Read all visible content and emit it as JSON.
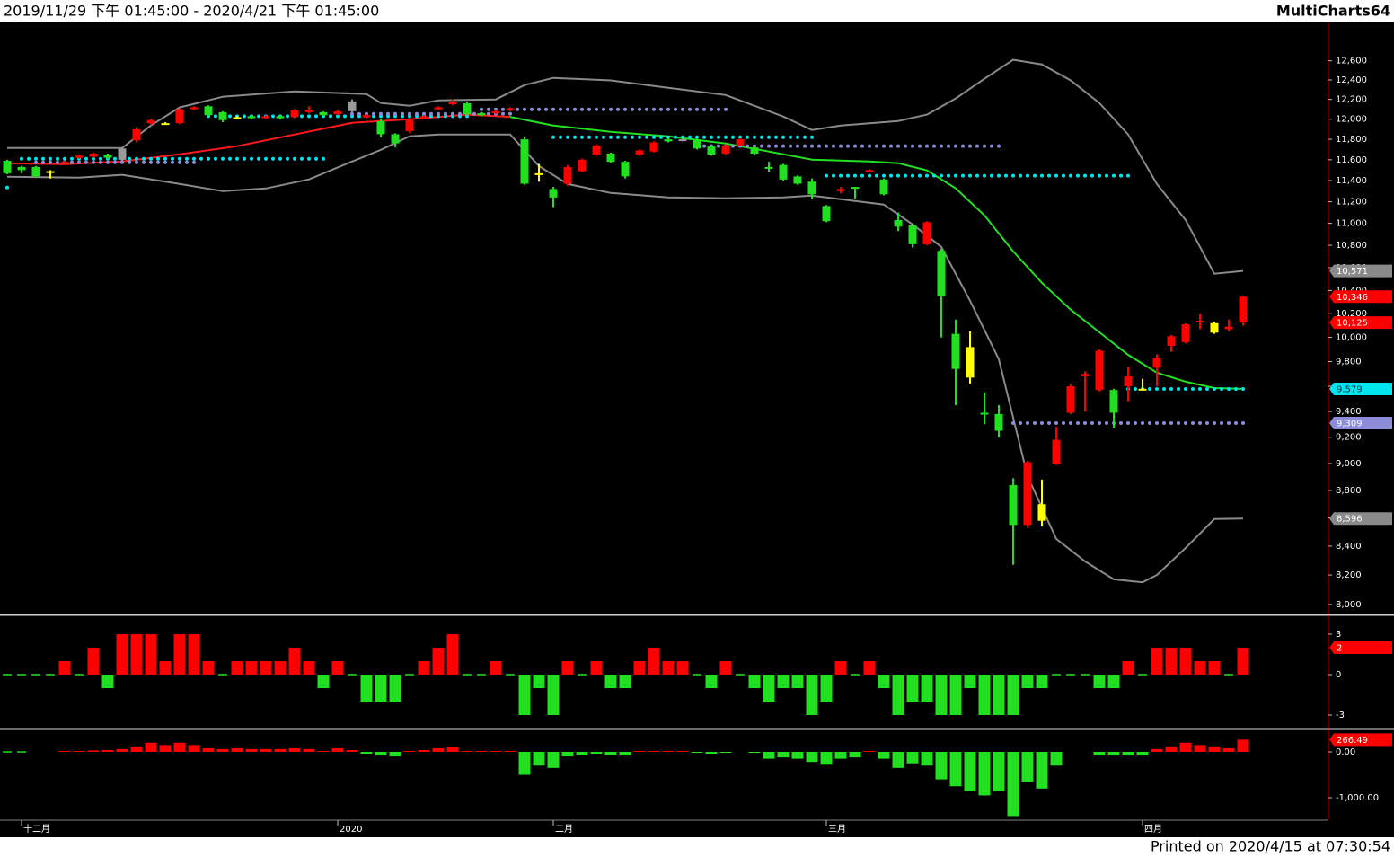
{
  "header": {
    "range": "2019/11/29 下午 01:45:00 - 2020/4/21 下午 01:45:00",
    "brand": "MultiCharts64"
  },
  "footer": {
    "printed": "Printed on 2020/4/15 at 07:30:54"
  },
  "chart_data": [
    {
      "type": "candlestick",
      "log_scale": true,
      "ylim": [
        7940,
        13010
      ],
      "yticks": [
        {
          "value": 8000,
          "label": "8,000"
        },
        {
          "value": 8200,
          "label": "8,200"
        },
        {
          "value": 8400,
          "label": "8,400"
        },
        {
          "value": 8600,
          "label": "8,600"
        },
        {
          "value": 8800,
          "label": "8,800"
        },
        {
          "value": 9000,
          "label": "9,000"
        },
        {
          "value": 9200,
          "label": "9,200"
        },
        {
          "value": 9400,
          "label": "9,400"
        },
        {
          "value": 9600,
          "label": "9,600"
        },
        {
          "value": 9800,
          "label": "9,800"
        },
        {
          "value": 10000,
          "label": "10,000"
        },
        {
          "value": 10200,
          "label": "10,200"
        },
        {
          "value": 10400,
          "label": "10,400"
        },
        {
          "value": 10600,
          "label": "10,600"
        },
        {
          "value": 10800,
          "label": "10,800"
        },
        {
          "value": 11000,
          "label": "11,000"
        },
        {
          "value": 11200,
          "label": "11,200"
        },
        {
          "value": 11400,
          "label": "11,400"
        },
        {
          "value": 11600,
          "label": "11,600"
        },
        {
          "value": 11800,
          "label": "11,800"
        },
        {
          "value": 12000,
          "label": "12,000"
        },
        {
          "value": 12200,
          "label": "12,200"
        },
        {
          "value": 12400,
          "label": "12,400"
        },
        {
          "value": 12600,
          "label": "12,600"
        }
      ],
      "categories": [
        null,
        "十二月",
        null,
        null,
        null,
        null,
        null,
        null,
        null,
        null,
        null,
        null,
        null,
        null,
        null,
        null,
        null,
        null,
        null,
        null,
        null,
        null,
        null,
        "2020",
        null,
        null,
        null,
        null,
        null,
        null,
        null,
        null,
        null,
        null,
        null,
        null,
        null,
        null,
        "二月",
        null,
        null,
        null,
        null,
        null,
        null,
        null,
        null,
        null,
        null,
        null,
        null,
        null,
        null,
        null,
        null,
        null,
        null,
        "三月",
        null,
        null,
        null,
        null,
        null,
        null,
        null,
        null,
        null,
        null,
        null,
        null,
        null,
        null,
        null,
        null,
        null,
        null,
        null,
        null,
        null,
        "四月",
        null,
        null,
        null,
        null,
        null,
        null,
        null
      ],
      "open": [
        11590,
        11530,
        11530,
        11490,
        11570,
        11620,
        11630,
        11650,
        11600,
        11790,
        11960,
        11960,
        11960,
        12100,
        12130,
        12070,
        12020,
        12030,
        12010,
        12030,
        12020,
        12090,
        12070,
        12050,
        12080,
        12020,
        11980,
        11850,
        11880,
        12010,
        12100,
        12150,
        12160,
        12060,
        12060,
        12090,
        11800,
        11470,
        11320,
        11370,
        11490,
        11650,
        11660,
        11580,
        11650,
        11680,
        11800,
        11800,
        11800,
        11730,
        11660,
        11740,
        11720,
        11530,
        11550,
        11440,
        11390,
        11160,
        11300,
        11340,
        11490,
        11410,
        11030,
        10980,
        10810,
        10750,
        10030,
        9920,
        9390,
        9380,
        8840,
        8550,
        8700,
        9000,
        9390,
        9680,
        9570,
        9570,
        9600,
        9580,
        9750,
        9930,
        9960,
        10130,
        10120,
        10070,
        10125
      ],
      "high": [
        11600,
        11540,
        11540,
        11500,
        11590,
        11650,
        11670,
        11660,
        11720,
        11920,
        12000,
        11970,
        12110,
        12130,
        12140,
        12080,
        12030,
        12040,
        12040,
        12040,
        12100,
        12130,
        12080,
        12090,
        12200,
        12050,
        12000,
        11860,
        12000,
        12040,
        12130,
        12200,
        12170,
        12070,
        12090,
        12120,
        11830,
        11560,
        11340,
        11550,
        11610,
        11750,
        11670,
        11590,
        11700,
        11780,
        11810,
        11810,
        11810,
        11740,
        11750,
        11810,
        11730,
        11580,
        11560,
        11450,
        11420,
        11170,
        11340,
        11340,
        11510,
        11420,
        11100,
        11000,
        11020,
        10770,
        10150,
        10050,
        9550,
        9450,
        8890,
        9020,
        8880,
        9280,
        9620,
        9720,
        9900,
        9580,
        9760,
        9660,
        9860,
        10020,
        10120,
        10200,
        10130,
        10150,
        10350
      ],
      "low": [
        11460,
        11470,
        11430,
        11420,
        11560,
        11610,
        11620,
        11610,
        11590,
        11770,
        11940,
        11950,
        11950,
        12090,
        12030,
        11970,
        12000,
        12000,
        12000,
        12000,
        12010,
        12060,
        12030,
        12040,
        12070,
        12010,
        11820,
        11720,
        11860,
        12000,
        12090,
        12140,
        12040,
        12030,
        12050,
        12080,
        11360,
        11390,
        11150,
        11350,
        11480,
        11640,
        11570,
        11420,
        11640,
        11670,
        11770,
        11780,
        11700,
        11640,
        11650,
        11730,
        11650,
        11480,
        11400,
        11360,
        11230,
        11010,
        11280,
        11230,
        11480,
        11260,
        10930,
        10780,
        10800,
        10000,
        9450,
        9620,
        9300,
        9200,
        8270,
        8530,
        8540,
        8990,
        9380,
        9400,
        9560,
        9270,
        9480,
        9570,
        9600,
        9880,
        9950,
        10070,
        10030,
        10050,
        10100
      ],
      "close": [
        11470,
        11500,
        11440,
        11490,
        11580,
        11640,
        11660,
        11620,
        11710,
        11900,
        11990,
        11960,
        12100,
        12120,
        12040,
        11990,
        12020,
        12010,
        12030,
        12010,
        12090,
        12090,
        12040,
        12080,
        12180,
        12040,
        11850,
        11760,
        11990,
        12030,
        12120,
        12170,
        12050,
        12040,
        12080,
        12110,
        11370,
        11470,
        11240,
        11530,
        11600,
        11740,
        11580,
        11440,
        11690,
        11770,
        11780,
        11790,
        11710,
        11650,
        11740,
        11800,
        11660,
        11520,
        11410,
        11370,
        11270,
        11020,
        11320,
        11330,
        11500,
        11270,
        10970,
        10810,
        11010,
        10350,
        9740,
        9670,
        9380,
        9250,
        8550,
        9010,
        8580,
        9180,
        9600,
        9700,
        9890,
        9390,
        9680,
        9580,
        9830,
        10010,
        10110,
        10140,
        10040,
        10090,
        10346
      ],
      "colors": [
        "#20e020",
        "#20e020",
        "#20e020",
        "#ffff00",
        "#ff0000",
        "#ff0000",
        "#ff0000",
        "#20e020",
        "#9a9a9a",
        "#ff0000",
        "#ff0000",
        "#ffff00",
        "#ff0000",
        "#ff0000",
        "#20e020",
        "#20e020",
        "#ffff00",
        "#20e020",
        "#ff0000",
        "#20e020",
        "#ff0000",
        "#ff0000",
        "#20e020",
        "#ff0000",
        "#9a9a9a",
        "#ff0000",
        "#20e020",
        "#20e020",
        "#ff0000",
        "#ff0000",
        "#ff0000",
        "#ff0000",
        "#20e020",
        "#20e020",
        "#ff0000",
        "#ff0000",
        "#20e020",
        "#ffff00",
        "#20e020",
        "#ff0000",
        "#ff0000",
        "#ff0000",
        "#20e020",
        "#20e020",
        "#ff0000",
        "#ff0000",
        "#20e020",
        "#9a9a9a",
        "#20e020",
        "#20e020",
        "#ff0000",
        "#ff0000",
        "#20e020",
        "#20e020",
        "#20e020",
        "#20e020",
        "#20e020",
        "#20e020",
        "#ff0000",
        "#20e020",
        "#ff0000",
        "#20e020",
        "#20e020",
        "#20e020",
        "#ff0000",
        "#20e020",
        "#20e020",
        "#ffff00",
        "#20e020",
        "#20e020",
        "#20e020",
        "#ff0000",
        "#ffff00",
        "#ff0000",
        "#ff0000",
        "#ff0000",
        "#ff0000",
        "#20e020",
        "#ff0000",
        "#ffff00",
        "#ff0000",
        "#ff0000",
        "#ff0000",
        "#ff0000",
        "#ffff00",
        "#ff0000",
        "#ff0000"
      ],
      "lines": [
        {
          "color": "#8a8a8a",
          "x": [
            0,
            8,
            10,
            12,
            15,
            20,
            25,
            26,
            28,
            30,
            34,
            36,
            38,
            42,
            46,
            50,
            54,
            56,
            58,
            62,
            64,
            66,
            68,
            70,
            72,
            74,
            76,
            78,
            80,
            82,
            84,
            86
          ],
          "values": [
            11714,
            11714,
            11937,
            12118,
            12227,
            12282,
            12255,
            12163,
            12135,
            12190,
            12200,
            12347,
            12421,
            12395,
            12319,
            12245,
            12027,
            11892,
            11937,
            11982,
            12046,
            12210,
            12412,
            12610,
            12562,
            12395,
            12163,
            11848,
            11368,
            11031,
            10547,
            10571
          ]
        },
        {
          "color": "#8a8a8a",
          "x": [
            0,
            5,
            8,
            12,
            15,
            18,
            21,
            24,
            26,
            28,
            30,
            35,
            37,
            39,
            42,
            46,
            50,
            54,
            56,
            58,
            61,
            63,
            65,
            67,
            69,
            71,
            73,
            75,
            77,
            79,
            80,
            82,
            84,
            86
          ],
          "values": [
            11437,
            11428,
            11455,
            11368,
            11300,
            11325,
            11411,
            11583,
            11697,
            11830,
            11848,
            11848,
            11540,
            11368,
            11283,
            11241,
            11232,
            11241,
            11258,
            11224,
            11174,
            10990,
            10786,
            10311,
            9820,
            8906,
            8451,
            8294,
            8170,
            8150,
            8200,
            8387,
            8592,
            8596
          ]
        },
        {
          "color": "#ff1a1a",
          "x": [
            0,
            4,
            8,
            12,
            16,
            20,
            24,
            28,
            32,
            35
          ],
          "values": [
            11567,
            11557,
            11583,
            11654,
            11733,
            11848,
            11963,
            12000,
            12046,
            12023
          ]
        },
        {
          "color": "#22e022",
          "x": [
            35,
            38,
            42,
            46,
            50,
            54,
            56,
            60,
            62,
            64,
            66,
            68,
            70,
            72,
            74,
            76,
            78,
            80,
            82,
            84,
            86
          ],
          "values": [
            12023,
            11937,
            11874,
            11830,
            11758,
            11654,
            11601,
            11583,
            11567,
            11497,
            11326,
            11073,
            10745,
            10467,
            10234,
            10043,
            9856,
            9710,
            9637,
            9586,
            9579
          ]
        }
      ],
      "levels": [
        {
          "color": "#00e5ee",
          "value": 11334,
          "x": [
            0,
            0
          ]
        },
        {
          "color": "#00e5ee",
          "value": 11610,
          "x": [
            1,
            22
          ]
        },
        {
          "color": "#8c8cd8",
          "value": 11575,
          "x": [
            2,
            13
          ]
        },
        {
          "color": "#00e5ee",
          "value": 12030,
          "x": [
            14,
            32
          ]
        },
        {
          "color": "#8c8cd8",
          "value": 12054,
          "x": [
            24,
            35
          ]
        },
        {
          "color": "#8c8cd8",
          "value": 12099,
          "x": [
            33,
            50
          ]
        },
        {
          "color": "#00e5ee",
          "value": 11821,
          "x": [
            38,
            56
          ]
        },
        {
          "color": "#8c8cd8",
          "value": 11733,
          "x": [
            48,
            69
          ]
        },
        {
          "color": "#00e5ee",
          "value": 11446,
          "x": [
            57,
            78
          ]
        },
        {
          "color": "#00e5ee",
          "value": 9579,
          "x": [
            78,
            86
          ]
        },
        {
          "color": "#8c8cd8",
          "value": 9309,
          "x": [
            70,
            86
          ]
        }
      ],
      "last_labels": [
        {
          "value": 10571,
          "label": "10,571",
          "color": "#8a8a8a",
          "text_color": "#ffffff"
        },
        {
          "value": 10346,
          "label": "10,346",
          "color": "#ff0000",
          "text_color": "#ffffff"
        },
        {
          "value": 10125,
          "label": "10,125",
          "color": "#ff0000",
          "text_color": "#ffffff"
        },
        {
          "value": 9579,
          "label": "9,579",
          "color": "#00e5ee",
          "text_color": "#003040"
        },
        {
          "value": 9309,
          "label": "9,309",
          "color": "#8c8cd8",
          "text_color": "#ffffff"
        },
        {
          "value": 8596,
          "label": "8,596",
          "color": "#8a8a8a",
          "text_color": "#ffffff"
        }
      ]
    },
    {
      "type": "bar",
      "ylim": [
        -3.93,
        4.33
      ],
      "yticks": [
        3,
        0,
        -3
      ],
      "up_color": "#ff0000",
      "down_color": "#20e020",
      "values": [
        0,
        0,
        0,
        0,
        1,
        0,
        2,
        -1,
        3,
        3,
        3,
        1,
        3,
        3,
        1,
        0,
        1,
        1,
        1,
        1,
        2,
        1,
        -1,
        1,
        0,
        -2,
        -2,
        -2,
        0,
        1,
        2,
        3,
        0,
        0,
        1,
        0,
        -3,
        -1,
        -3,
        1,
        0,
        1,
        -1,
        -1,
        1,
        2,
        1,
        1,
        0,
        -1,
        1,
        0,
        -1,
        -2,
        -1,
        -1,
        -3,
        -2,
        1,
        0,
        1,
        -1,
        -3,
        -2,
        -2,
        -3,
        -3,
        -1,
        -3,
        -3,
        -3,
        -1,
        -1,
        0,
        0,
        0,
        -1,
        -1,
        1,
        0,
        2,
        2,
        2,
        1,
        1,
        0,
        2
      ],
      "last_labels": [
        {
          "value": 2,
          "label": "2",
          "color": "#ff0000",
          "text_color": "#ffffff"
        }
      ]
    },
    {
      "type": "bar",
      "ylim": [
        -1470,
        470
      ],
      "yticks": [
        {
          "value": 0,
          "label": "0.00"
        },
        {
          "value": -1000,
          "label": "-1,000.00"
        }
      ],
      "up_color": "#ff0000",
      "down_color": "#20e020",
      "values": [
        0,
        0,
        null,
        null,
        20,
        20,
        30,
        40,
        60,
        120,
        200,
        150,
        200,
        150,
        80,
        60,
        80,
        60,
        60,
        60,
        80,
        60,
        20,
        80,
        40,
        -40,
        -80,
        -100,
        20,
        40,
        80,
        100,
        20,
        20,
        20,
        20,
        -500,
        -300,
        -350,
        -100,
        -60,
        -40,
        -60,
        -80,
        20,
        20,
        20,
        20,
        -20,
        -40,
        -20,
        null,
        -20,
        -150,
        -120,
        -150,
        -220,
        -280,
        -150,
        -120,
        20,
        -150,
        -350,
        -250,
        -300,
        -600,
        -750,
        -850,
        -950,
        -850,
        -1400,
        -650,
        -800,
        -300,
        null,
        null,
        -80,
        -80,
        -80,
        -80,
        60,
        120,
        200,
        150,
        120,
        80,
        266.49
      ],
      "last_labels": [
        {
          "value": 266.49,
          "label": "266.49",
          "color": "#ff0000",
          "text_color": "#ffffff"
        }
      ]
    }
  ]
}
